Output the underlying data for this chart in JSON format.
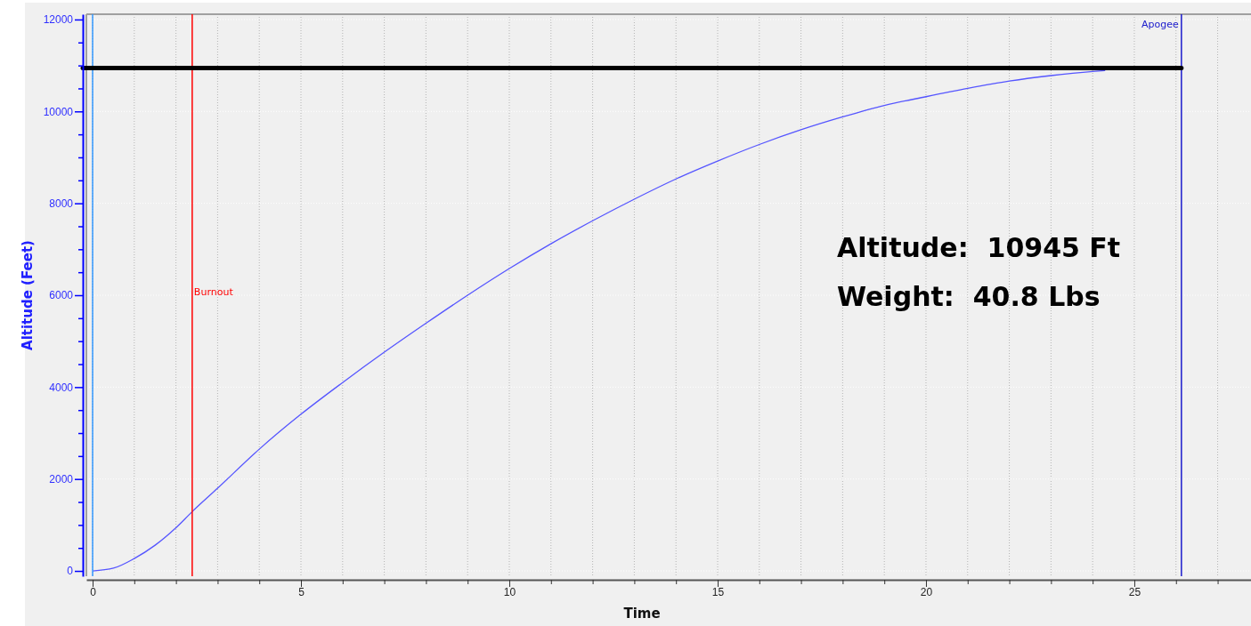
{
  "chart_data": {
    "type": "line",
    "xlabel": "Time",
    "ylabel": "Altitude (Feet)",
    "x": [
      0,
      0.5,
      1,
      1.5,
      2,
      2.39,
      3,
      4,
      5,
      6,
      7,
      8,
      9,
      10,
      11,
      12,
      13,
      14,
      15,
      16,
      17,
      18,
      19,
      20,
      21,
      22,
      23,
      24,
      24.3
    ],
    "series": [
      {
        "color": "#5555ff",
        "values": [
          0,
          60,
          270,
          560,
          940,
          1290,
          1800,
          2650,
          3410,
          4100,
          4760,
          5390,
          6000,
          6580,
          7120,
          7620,
          8090,
          8530,
          8920,
          9280,
          9600,
          9880,
          10130,
          10320,
          10500,
          10660,
          10780,
          10870,
          10890
        ]
      }
    ],
    "xlim": [
      -0.15,
      27.8
    ],
    "ylim": [
      -115,
      12115
    ],
    "xticks": [
      0,
      {
        "value": 1,
        "label": null
      },
      {
        "value": 2,
        "label": null
      },
      {
        "value": 3,
        "label": null
      },
      {
        "value": 4,
        "label": null
      },
      5,
      {
        "value": 6,
        "label": null
      },
      {
        "value": 7,
        "label": null
      },
      {
        "value": 8,
        "label": null
      },
      {
        "value": 9,
        "label": null
      },
      10,
      {
        "value": 11,
        "label": null
      },
      {
        "value": 12,
        "label": null
      },
      {
        "value": 13,
        "label": null
      },
      {
        "value": 14,
        "label": null
      },
      15,
      {
        "value": 16,
        "label": null
      },
      {
        "value": 17,
        "label": null
      },
      {
        "value": 18,
        "label": null
      },
      {
        "value": 19,
        "label": null
      },
      20,
      {
        "value": 21,
        "label": null
      },
      {
        "value": 22,
        "label": null
      },
      {
        "value": 23,
        "label": null
      },
      {
        "value": 24,
        "label": null
      },
      25,
      {
        "value": 26,
        "label": null
      },
      {
        "value": 27,
        "label": null
      }
    ],
    "yticks": [
      0,
      {
        "value": 500,
        "label": null
      },
      {
        "value": 1000,
        "label": null
      },
      {
        "value": 1500,
        "label": null
      },
      2000,
      {
        "value": 2500,
        "label": null
      },
      {
        "value": 3000,
        "label": null
      },
      {
        "value": 3500,
        "label": null
      },
      4000,
      {
        "value": 4500,
        "label": null
      },
      {
        "value": 5000,
        "label": null
      },
      {
        "value": 5500,
        "label": null
      },
      6000,
      {
        "value": 6500,
        "label": null
      },
      {
        "value": 7000,
        "label": null
      },
      {
        "value": 7500,
        "label": null
      },
      8000,
      {
        "value": 8500,
        "label": null
      },
      {
        "value": 9000,
        "label": null
      },
      {
        "value": 9500,
        "label": null
      },
      10000,
      {
        "value": 10500,
        "label": null
      },
      {
        "value": 11000,
        "label": null
      },
      {
        "value": 11500,
        "label": null
      },
      12000
    ],
    "grid": true,
    "ref_lines": [
      {
        "axis": "x",
        "value": 0,
        "color": "#3399ff"
      },
      {
        "axis": "x",
        "value": 2.39,
        "label": "Burnout",
        "color": "#ff0000"
      },
      {
        "axis": "x",
        "value": 26.13,
        "label": "Apogee",
        "color": "#1a1acc"
      },
      {
        "axis": "y",
        "value": 10945,
        "color": "#000000"
      }
    ],
    "annotations": [
      "Altitude:  10945 Ft",
      "Weight:  40.8 Lbs"
    ]
  }
}
